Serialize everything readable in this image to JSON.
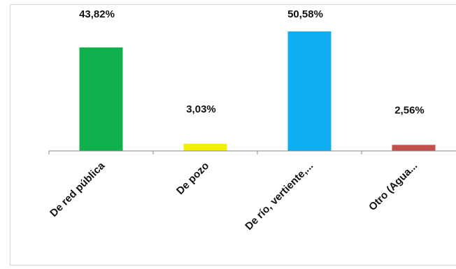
{
  "chart_data": {
    "type": "bar",
    "categories": [
      "De red pública",
      "De pozo",
      "De río, vertiente,...",
      "Otro (Agua..."
    ],
    "values": [
      43.82,
      3.03,
      50.58,
      2.56
    ],
    "data_labels": [
      "43,82%",
      "3,03%",
      "50,58%",
      "2,56%"
    ],
    "colors": [
      "#12b04c",
      "#f4f100",
      "#0eaef0",
      "#c2504d"
    ],
    "title": "",
    "xlabel": "",
    "ylabel": "",
    "ylim": [
      0,
      55
    ],
    "grid": false,
    "legend": "none"
  }
}
